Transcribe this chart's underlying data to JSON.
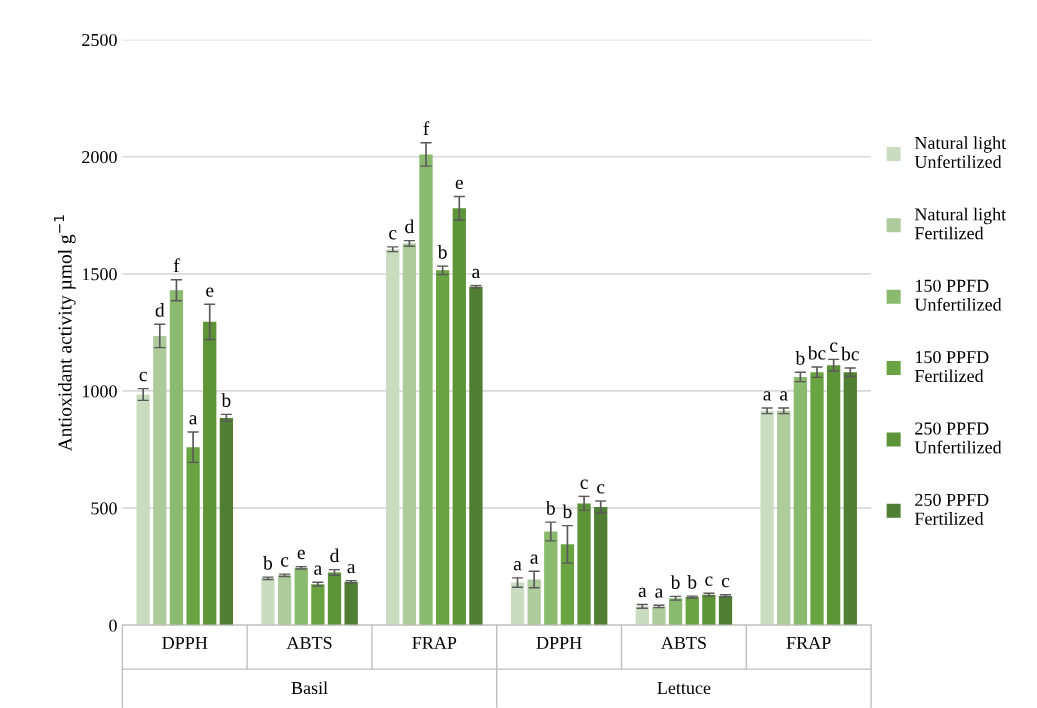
{
  "chart_data": {
    "type": "bar",
    "ylabel": "Antioxidant activity µmol g$^{−1}$",
    "categories": [
      "DPPH",
      "ABTS",
      "FRAP",
      "DPPH",
      "ABTS",
      "FRAP"
    ],
    "annotations": [
      "Basil",
      "Lettuce"
    ],
    "ylim": [
      0,
      2500
    ],
    "yticks": [
      0,
      500,
      1000,
      1500,
      2000,
      2500
    ],
    "grid": "y",
    "legend": "right",
    "series": [
      {
        "name": "Natural light\nUnfertilized",
        "color": "#c9dcc0",
        "values": [
          985,
          200,
          1605,
          182,
          80,
          915
        ],
        "errors": [
          25,
          5,
          10,
          20,
          8,
          12
        ],
        "value_labels": [
          "c",
          "b",
          "c",
          "a",
          "a",
          "a"
        ]
      },
      {
        "name": "Natural light\nFertilized",
        "color": "#aecb9c",
        "values": [
          1235,
          213,
          1630,
          195,
          80,
          915
        ],
        "errors": [
          50,
          5,
          12,
          35,
          5,
          12
        ],
        "value_labels": [
          "d",
          "c",
          "d",
          "a",
          "a",
          "a"
        ]
      },
      {
        "name": "150 PPFD\nUnfertilized",
        "color": "#8aba6d",
        "values": [
          1430,
          245,
          2010,
          400,
          115,
          1060
        ],
        "errors": [
          45,
          5,
          50,
          40,
          8,
          20
        ],
        "value_labels": [
          "f",
          "e",
          "f",
          "b",
          "b",
          "b"
        ]
      },
      {
        "name": "150 PPFD\nFertilized",
        "color": "#6aa442",
        "values": [
          760,
          175,
          1515,
          345,
          120,
          1080
        ],
        "errors": [
          65,
          8,
          18,
          80,
          4,
          22
        ],
        "value_labels": [
          "a",
          "a",
          "b",
          "b",
          "b",
          "bc"
        ]
      },
      {
        "name": "250 PPFD\nUnfertilized",
        "color": "#5e9438",
        "values": [
          1295,
          225,
          1780,
          520,
          130,
          1110
        ],
        "errors": [
          75,
          12,
          50,
          30,
          6,
          25
        ],
        "value_labels": [
          "e",
          "d",
          "e",
          "c",
          "c",
          "c"
        ]
      },
      {
        "name": "250 PPFD\nFertilized",
        "color": "#507f33",
        "values": [
          885,
          185,
          1445,
          505,
          125,
          1080
        ],
        "errors": [
          15,
          5,
          5,
          25,
          5,
          18
        ],
        "value_labels": [
          "b",
          "a",
          "a",
          "c",
          "c",
          "bc"
        ]
      }
    ]
  }
}
